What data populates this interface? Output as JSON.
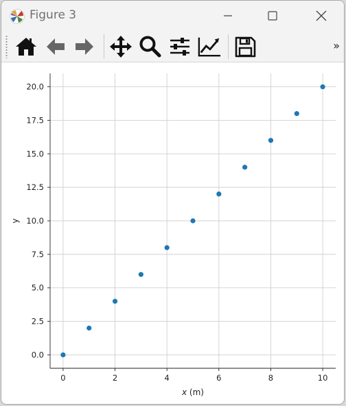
{
  "window": {
    "title": "Figure 3"
  },
  "toolbar": {
    "tools": [
      "home-icon",
      "back-arrow-icon",
      "forward-arrow-icon",
      "pan-move-icon",
      "zoom-magnifier-icon",
      "configure-subplots-icon",
      "edit-axis-curve-icon",
      "save-floppy-icon"
    ],
    "overflow_label": "»"
  },
  "chart_data": {
    "type": "scatter",
    "x": [
      0,
      1,
      2,
      3,
      4,
      5,
      6,
      7,
      8,
      9,
      10
    ],
    "y": [
      0,
      2,
      4,
      6,
      8,
      10,
      12,
      14,
      16,
      18,
      20
    ],
    "xlabel_var": "x",
    "xlabel_unit": " (m)",
    "ylabel": "y",
    "xlim": [
      -0.5,
      10.5
    ],
    "ylim": [
      -1.0,
      21.0
    ],
    "xticks": [
      0,
      2,
      4,
      6,
      8,
      10
    ],
    "xtick_labels": [
      "0",
      "2",
      "4",
      "6",
      "8",
      "10"
    ],
    "yticks": [
      0,
      2.5,
      5,
      7.5,
      10,
      12.5,
      15,
      17.5,
      20
    ],
    "ytick_labels": [
      "0.0",
      "2.5",
      "5.0",
      "7.5",
      "10.0",
      "12.5",
      "15.0",
      "17.5",
      "20.0"
    ],
    "grid": true,
    "marker_color": "#1f77b4"
  }
}
